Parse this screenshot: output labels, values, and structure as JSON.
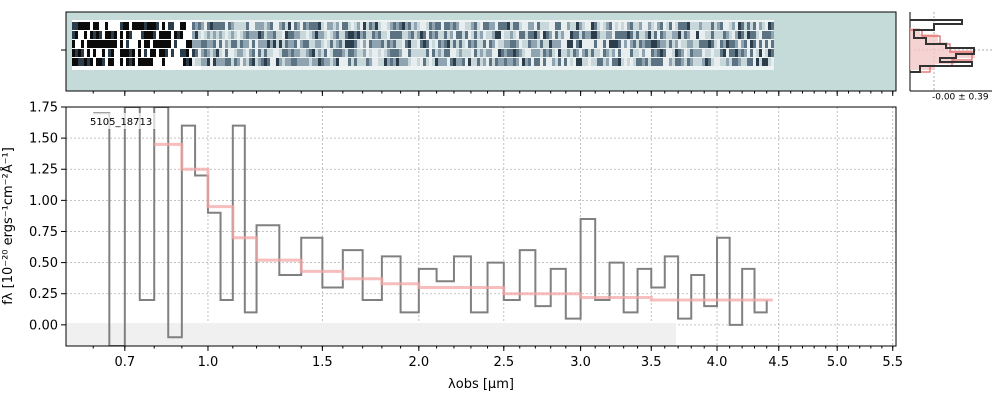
{
  "chart_data": [
    {
      "type": "image",
      "panel": "2d-spectrum",
      "background_color": "#c4dbd9",
      "grid": false
    },
    {
      "type": "histogram",
      "panel": "residual-histogram",
      "annotation": "-0.00 ± 0.39",
      "colors": {
        "outline": "#333333",
        "model": "#e06060",
        "fill": "#f4c8c8"
      }
    },
    {
      "type": "line",
      "panel": "1d-spectrum",
      "object_label": "5105_18713",
      "xlabel": "λobs [μm]",
      "ylabel": "fλ [10⁻²⁰ ergs⁻¹cm⁻²Å⁻¹]",
      "xscale": "sqrt",
      "xlim": [
        0.52,
        5.53
      ],
      "ylim": [
        -0.17,
        1.75
      ],
      "grid": true,
      "xticks": [
        0.7,
        1.0,
        1.5,
        2.0,
        2.5,
        3.0,
        3.5,
        4.0,
        4.5,
        5.0,
        5.5
      ],
      "xtick_labels": [
        "0.7",
        "1.0",
        "1.5",
        "2.0",
        "2.5",
        "3.0",
        "3.5",
        "4.0",
        "4.5",
        "5.0",
        "5.5"
      ],
      "yticks": [
        0.0,
        0.25,
        0.5,
        0.75,
        1.0,
        1.25,
        1.5,
        1.75
      ],
      "ytick_labels": [
        "0.00",
        "0.25",
        "0.50",
        "0.75",
        "1.00",
        "1.25",
        "1.50",
        "1.75"
      ],
      "series": [
        {
          "role": "data",
          "color": "#808080",
          "x": [
            0.6,
            0.65,
            0.7,
            0.75,
            0.8,
            0.85,
            0.9,
            0.95,
            1.0,
            1.05,
            1.1,
            1.15,
            1.2,
            1.3,
            1.4,
            1.5,
            1.6,
            1.7,
            1.8,
            1.9,
            2.0,
            2.1,
            2.2,
            2.3,
            2.4,
            2.5,
            2.6,
            2.7,
            2.8,
            2.9,
            3.0,
            3.1,
            3.2,
            3.3,
            3.4,
            3.5,
            3.6,
            3.7,
            3.8,
            3.9,
            4.0,
            4.1,
            4.2,
            4.3,
            4.4
          ],
          "y": [
            1.7,
            -0.17,
            1.75,
            0.2,
            1.75,
            -0.1,
            1.6,
            1.2,
            0.9,
            0.2,
            1.6,
            0.1,
            0.8,
            0.4,
            0.7,
            0.3,
            0.6,
            0.2,
            0.55,
            0.1,
            0.45,
            0.35,
            0.55,
            0.1,
            0.5,
            0.2,
            0.6,
            0.15,
            0.45,
            0.05,
            0.85,
            0.2,
            0.5,
            0.1,
            0.45,
            0.3,
            0.55,
            0.05,
            0.4,
            0.15,
            0.7,
            0.0,
            0.45,
            0.1,
            0.2
          ]
        },
        {
          "role": "model",
          "color": "#f4a8a8",
          "x": [
            0.8,
            0.9,
            1.0,
            1.1,
            1.2,
            1.4,
            1.6,
            1.8,
            2.0,
            2.5,
            3.0,
            3.5,
            4.0,
            4.45
          ],
          "y": [
            1.45,
            1.25,
            0.95,
            0.7,
            0.52,
            0.43,
            0.37,
            0.33,
            0.3,
            0.25,
            0.22,
            0.2,
            0.2,
            0.2
          ]
        }
      ]
    }
  ]
}
